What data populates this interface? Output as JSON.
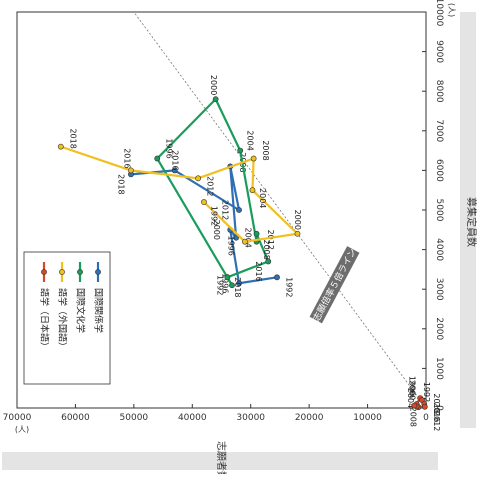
{
  "chart_data": {
    "type": "line",
    "orientation": "rotated-90-clockwise",
    "x_axis": {
      "label": "募集定員数",
      "unit": "(人)",
      "range": [
        0,
        10000
      ],
      "ticks": [
        "0",
        "1000",
        "2000",
        "3000",
        "4000",
        "5000",
        "6000",
        "7000",
        "8000",
        "9000",
        "10000"
      ]
    },
    "y_axis": {
      "label": "志願者数",
      "unit": "(人)",
      "range": [
        0,
        70000
      ],
      "ticks": [
        "0",
        "10000",
        "20000",
        "30000",
        "40000",
        "50000",
        "60000",
        "70000"
      ]
    },
    "reference_line": {
      "label": "志願倍率５倍ライン",
      "ratio": 5
    },
    "legend": {
      "position": "inside",
      "entries": [
        "国際関係学",
        "国際文化学",
        "語学（外国語）",
        "語学（日本語）"
      ]
    },
    "series": [
      {
        "name": "国際関係学",
        "color": "#2f6fb3",
        "points": [
          {
            "year": "1992",
            "x": 3300,
            "y": 25500
          },
          {
            "year": "1996",
            "x": 3150,
            "y": 32000
          },
          {
            "year": "2000",
            "x": 4500,
            "y": 33500
          },
          {
            "year": "2004",
            "x": 4300,
            "y": 32500
          },
          {
            "year": "2008",
            "x": 6100,
            "y": 33500
          },
          {
            "year": "2012",
            "x": 5000,
            "y": 32000
          },
          {
            "year": "2016",
            "x": 6000,
            "y": 43000
          },
          {
            "year": "2018",
            "x": 5900,
            "y": 50500
          }
        ]
      },
      {
        "name": "国際文化学",
        "color": "#1a9c5b",
        "points": [
          {
            "year": "1992",
            "x": 3100,
            "y": 33200
          },
          {
            "year": "1996",
            "x": 6300,
            "y": 46000
          },
          {
            "year": "2000",
            "x": 7800,
            "y": 36000
          },
          {
            "year": "2004",
            "x": 6500,
            "y": 31800
          },
          {
            "year": "2008",
            "x": 4200,
            "y": 29000
          },
          {
            "year": "2012",
            "x": 4400,
            "y": 29000
          },
          {
            "year": "2016",
            "x": 3700,
            "y": 27000
          },
          {
            "year": "2018",
            "x": 3300,
            "y": 34000
          }
        ]
      },
      {
        "name": "語学（外国語）",
        "color": "#f0c020",
        "points": [
          {
            "year": "1992",
            "x": 5200,
            "y": 38000
          },
          {
            "year": "1996",
            "x": 4200,
            "y": 31000
          },
          {
            "year": "2000",
            "x": 4400,
            "y": 22000
          },
          {
            "year": "2004",
            "x": 5500,
            "y": 29700
          },
          {
            "year": "2008",
            "x": 6300,
            "y": 29500
          },
          {
            "year": "2012",
            "x": 5800,
            "y": 39000
          },
          {
            "year": "2016",
            "x": 6000,
            "y": 50500
          },
          {
            "year": "2018",
            "x": 6600,
            "y": 62500
          }
        ]
      },
      {
        "name": "語学（日本語）",
        "color": "#d24a2a",
        "points": [
          {
            "year": "1992",
            "x": 100,
            "y": 1600
          },
          {
            "year": "1996",
            "x": 250,
            "y": 1000
          },
          {
            "year": "2000",
            "x": 200,
            "y": 700
          },
          {
            "year": "2004",
            "x": 100,
            "y": 300
          },
          {
            "year": "2008",
            "x": 30,
            "y": 200
          },
          {
            "year": "2012",
            "x": 20,
            "y": 1300
          },
          {
            "year": "2016",
            "x": 40,
            "y": 1600
          },
          {
            "year": "2018",
            "x": 60,
            "y": 2000
          }
        ]
      }
    ]
  }
}
